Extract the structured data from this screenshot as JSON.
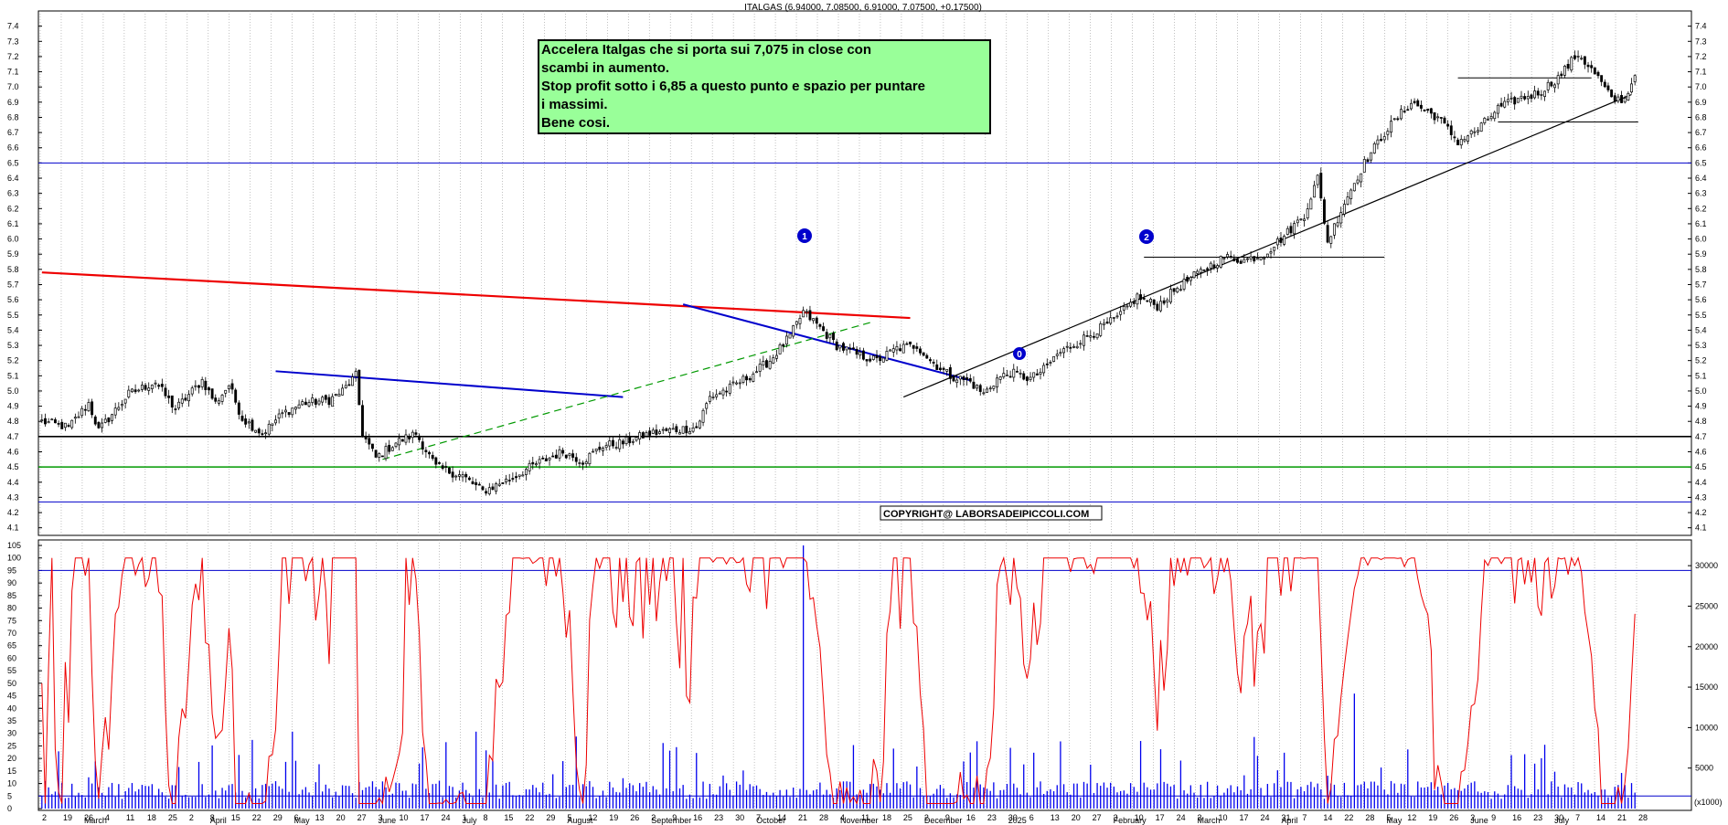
{
  "header": {
    "title": "ITALGAS (6.94000, 7.08500, 6.91000, 7.07500, +0.17500)"
  },
  "annotation": {
    "lines": [
      "Accelera Italgas che si porta sui 7,075 in close con",
      "scambi in aumento.",
      "Stop profit sotto i 6,85 a questo punto e spazio per puntare",
      "i massimi.",
      "Bene cosi."
    ],
    "bg_color": "#99ff99"
  },
  "copyright": "COPYRIGHT@ LABORSADEIPICCOLI.COM",
  "wave_labels": [
    "1",
    "2",
    "0"
  ],
  "chart_data": [
    {
      "type": "candlestick",
      "title": "ITALGAS",
      "ylim": [
        4.05,
        7.5
      ],
      "yticks": [
        4.1,
        4.2,
        4.3,
        4.4,
        4.5,
        4.6,
        4.7,
        4.8,
        4.9,
        5.0,
        5.1,
        5.2,
        5.3,
        5.4,
        5.5,
        5.6,
        5.7,
        5.8,
        5.9,
        6.0,
        6.1,
        6.2,
        6.3,
        6.4,
        6.5,
        6.6,
        6.7,
        6.8,
        6.9,
        7.0,
        7.1,
        7.2,
        7.3,
        7.4
      ],
      "last_bar": {
        "open": 6.94,
        "high": 7.085,
        "low": 6.91,
        "close": 7.075,
        "change": 0.175
      },
      "anchors": [
        [
          0,
          4.8
        ],
        [
          8,
          4.76
        ],
        [
          14,
          4.92
        ],
        [
          17,
          4.74
        ],
        [
          26,
          4.98
        ],
        [
          34,
          5.06
        ],
        [
          40,
          4.88
        ],
        [
          48,
          5.07
        ],
        [
          52,
          4.92
        ],
        [
          56,
          5.04
        ],
        [
          60,
          4.82
        ],
        [
          66,
          4.72
        ],
        [
          72,
          4.85
        ],
        [
          78,
          4.92
        ],
        [
          86,
          4.94
        ],
        [
          90,
          5.0
        ],
        [
          94,
          5.1
        ],
        [
          96,
          4.72
        ],
        [
          100,
          4.56
        ],
        [
          106,
          4.66
        ],
        [
          112,
          4.72
        ],
        [
          118,
          4.5
        ],
        [
          126,
          4.44
        ],
        [
          132,
          4.34
        ],
        [
          140,
          4.42
        ],
        [
          148,
          4.52
        ],
        [
          156,
          4.6
        ],
        [
          162,
          4.54
        ],
        [
          168,
          4.64
        ],
        [
          174,
          4.66
        ],
        [
          182,
          4.72
        ],
        [
          188,
          4.74
        ],
        [
          196,
          4.76
        ],
        [
          200,
          4.96
        ],
        [
          206,
          5.02
        ],
        [
          212,
          5.1
        ],
        [
          218,
          5.2
        ],
        [
          224,
          5.36
        ],
        [
          228,
          5.52
        ],
        [
          232,
          5.44
        ],
        [
          238,
          5.3
        ],
        [
          244,
          5.24
        ],
        [
          250,
          5.2
        ],
        [
          256,
          5.28
        ],
        [
          262,
          5.3
        ],
        [
          266,
          5.2
        ],
        [
          272,
          5.1
        ],
        [
          278,
          5.06
        ],
        [
          282,
          4.98
        ],
        [
          286,
          5.08
        ],
        [
          290,
          5.12
        ],
        [
          296,
          5.08
        ],
        [
          300,
          5.14
        ],
        [
          304,
          5.24
        ],
        [
          310,
          5.32
        ],
        [
          316,
          5.4
        ],
        [
          322,
          5.48
        ],
        [
          328,
          5.62
        ],
        [
          334,
          5.56
        ],
        [
          340,
          5.68
        ],
        [
          348,
          5.8
        ],
        [
          354,
          5.88
        ],
        [
          360,
          5.86
        ],
        [
          366,
          5.9
        ],
        [
          372,
          6.02
        ],
        [
          378,
          6.16
        ],
        [
          382,
          6.4
        ],
        [
          385,
          5.98
        ],
        [
          390,
          6.24
        ],
        [
          396,
          6.5
        ],
        [
          402,
          6.7
        ],
        [
          410,
          6.9
        ],
        [
          418,
          6.8
        ],
        [
          424,
          6.64
        ],
        [
          430,
          6.72
        ],
        [
          436,
          6.86
        ],
        [
          442,
          6.92
        ],
        [
          448,
          6.96
        ],
        [
          454,
          7.06
        ],
        [
          460,
          7.22
        ],
        [
          466,
          7.06
        ],
        [
          470,
          6.92
        ],
        [
          474,
          6.92
        ],
        [
          477,
          7.075
        ]
      ],
      "volume_scale": [
        0,
        32500
      ],
      "volume_ticks": [
        5000,
        10000,
        15000,
        20000,
        25000,
        30000
      ],
      "volume_unit_label": "(x1000)",
      "oscillator_ticks": [
        0,
        5,
        10,
        15,
        20,
        25,
        30,
        35,
        40,
        45,
        50,
        55,
        60,
        65,
        70,
        75,
        80,
        85,
        90,
        95,
        100,
        105
      ],
      "oscillator_range": [
        0,
        105
      ],
      "x_days": [
        "2",
        "19",
        "26",
        "4",
        "11",
        "18",
        "25",
        "2",
        "8",
        "15",
        "22",
        "29",
        "6",
        "13",
        "20",
        "27",
        "3",
        "10",
        "17",
        "24",
        "1",
        "8",
        "15",
        "22",
        "29",
        "5",
        "12",
        "19",
        "26",
        "2",
        "9",
        "16",
        "23",
        "30",
        "7",
        "14",
        "21",
        "28",
        "4",
        "11",
        "18",
        "25",
        "2",
        "9",
        "16",
        "23",
        "30",
        "6",
        "13",
        "20",
        "27",
        "3",
        "10",
        "17",
        "24",
        "3",
        "10",
        "17",
        "24",
        "31",
        "7",
        "14",
        "22",
        "28",
        "5",
        "12",
        "19",
        "26",
        "2",
        "9",
        "16",
        "23",
        "30",
        "7",
        "14",
        "21",
        "28"
      ],
      "x_months": [
        "March",
        "April",
        "May",
        "June",
        "July",
        "August",
        "September",
        "October",
        "November",
        "December",
        "2025",
        "February",
        "March",
        "April",
        "May",
        "June",
        "July"
      ],
      "annotations": {
        "year_marker": "2025"
      }
    }
  ],
  "colors": {
    "trend_red": "#ee0000",
    "trend_blue": "#0000cc",
    "support_green": "#009900",
    "oscillator_red": "#ee0000",
    "volume_blue": "#0000ee",
    "grid": "#999999"
  }
}
